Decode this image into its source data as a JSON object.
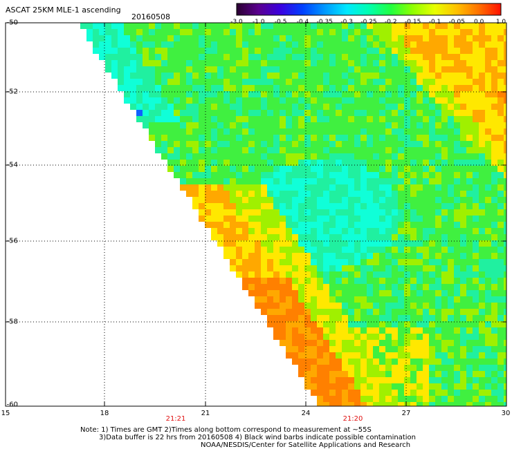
{
  "header": {
    "title": "ASCAT 25KM MLE-1 ascending",
    "date": "20160508"
  },
  "colorbar": {
    "labels": [
      "-3.0",
      "-1.0",
      "-0.5",
      "-0.4",
      "-0.35",
      "-0.3",
      "-0.25",
      "-0.2",
      "-0.15",
      "-0.1",
      "-0.05",
      "0.0",
      "1.0"
    ],
    "colors": [
      "#2a0030",
      "#5a0090",
      "#3a00e0",
      "#0040ff",
      "#0098ff",
      "#00e8ff",
      "#00ffb0",
      "#20ff40",
      "#90ff00",
      "#e8ff00",
      "#ffc000",
      "#ff7000",
      "#ff1000"
    ]
  },
  "map": {
    "lat_labels": [
      "-50",
      "-52",
      "-54",
      "-56",
      "-58",
      "-60"
    ],
    "lon_labels": [
      "15",
      "18",
      "21",
      "24",
      "27",
      "30"
    ],
    "time_labels": [
      "21:21",
      "21:20"
    ],
    "palette": {
      "cyan": "#10ffd8",
      "teal": "#20f0a0",
      "green": "#40f040",
      "lime": "#a0f000",
      "yellow": "#ffe800",
      "orange": "#ffa800",
      "darkorange": "#ff8000",
      "blue": "#1060ff"
    }
  },
  "notes": {
    "line1": "Note: 1) Times are GMT 2)Times along bottom correspond to measurement at ~55S",
    "line2": "3)Data buffer is 22 hrs from 20160508 4) Black wind barbs indicate possible contamination",
    "line3": "NOAA/NESDIS/Center for Satellite Applications and Research"
  }
}
